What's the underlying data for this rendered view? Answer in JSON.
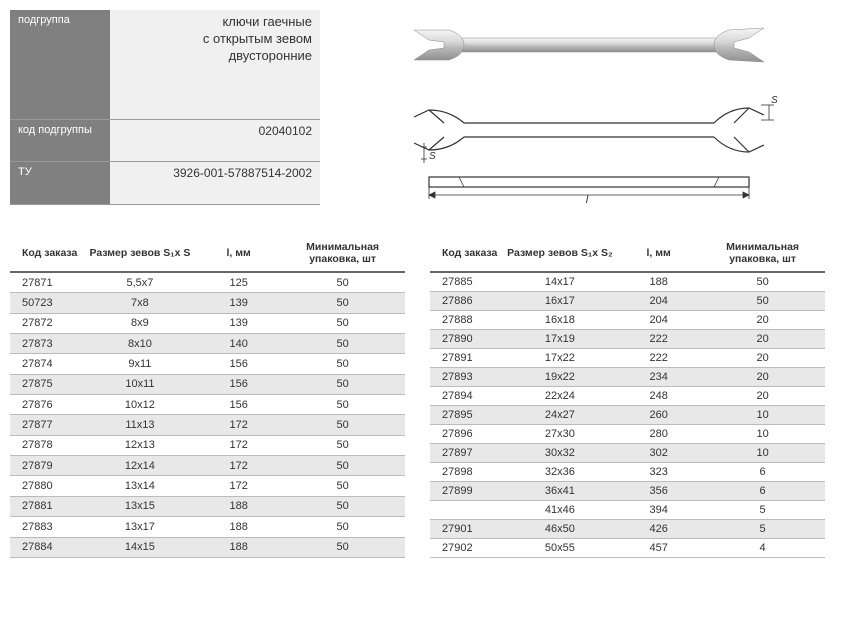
{
  "info": {
    "subgroup_label": "подгруппа",
    "subgroup_value": "ключи гаечные\nс открытым зевом\nдвусторонние",
    "code_label": "код подгруппы",
    "code_value": "02040102",
    "tu_label": "ТУ",
    "tu_value": "3926-001-57887514-2002"
  },
  "headers": {
    "code": "Код заказа",
    "size": "Размер зевов S₁x S₂",
    "size2": "Размер зевов S₁x S₂",
    "len": "l, мм",
    "pack": "Минимальная упаковка, шт"
  },
  "table1": {
    "columns": [
      "Код заказа",
      "Размер зевов S₁x S",
      "l, мм",
      "Минимальная упаковка, шт"
    ],
    "rows": [
      [
        "27871",
        "5,5x7",
        "125",
        "50"
      ],
      [
        "50723",
        "7x8",
        "139",
        "50"
      ],
      [
        "27872",
        "8x9",
        "139",
        "50"
      ],
      [
        "27873",
        "8x10",
        "140",
        "50"
      ],
      [
        "27874",
        "9x11",
        "156",
        "50"
      ],
      [
        "27875",
        "10x11",
        "156",
        "50"
      ],
      [
        "27876",
        "10x12",
        "156",
        "50"
      ],
      [
        "27877",
        "11x13",
        "172",
        "50"
      ],
      [
        "27878",
        "12x13",
        "172",
        "50"
      ],
      [
        "27879",
        "12x14",
        "172",
        "50"
      ],
      [
        "27880",
        "13x14",
        "172",
        "50"
      ],
      [
        "27881",
        "13x15",
        "188",
        "50"
      ],
      [
        "27883",
        "13x17",
        "188",
        "50"
      ],
      [
        "27884",
        "14x15",
        "188",
        "50"
      ]
    ]
  },
  "table2": {
    "columns": [
      "Код заказа",
      "Размер зевов S₁x S₂",
      "l, мм",
      "Минимальная упаковка, шт"
    ],
    "rows": [
      [
        "27885",
        "14x17",
        "188",
        "50"
      ],
      [
        "27886",
        "16x17",
        "204",
        "50"
      ],
      [
        "27888",
        "16x18",
        "204",
        "20"
      ],
      [
        "27890",
        "17x19",
        "222",
        "20"
      ],
      [
        "27891",
        "17x22",
        "222",
        "20"
      ],
      [
        "27893",
        "19x22",
        "234",
        "20"
      ],
      [
        "27894",
        "22x24",
        "248",
        "20"
      ],
      [
        "27895",
        "24x27",
        "260",
        "10"
      ],
      [
        "27896",
        "27x30",
        "280",
        "10"
      ],
      [
        "27897",
        "30x32",
        "302",
        "10"
      ],
      [
        "27898",
        "32x36",
        "323",
        "6"
      ],
      [
        "27899",
        "36x41",
        "356",
        "6"
      ],
      [
        "",
        "41x46",
        "394",
        "5"
      ],
      [
        "27901",
        "46x50",
        "426",
        "5"
      ],
      [
        "27902",
        "50x55",
        "457",
        "4"
      ]
    ]
  },
  "style": {
    "header_bg": "#808080",
    "alt_row_bg": "#e8e8e8",
    "border_color": "#999999",
    "text_color": "#333333",
    "font_size": 11
  }
}
